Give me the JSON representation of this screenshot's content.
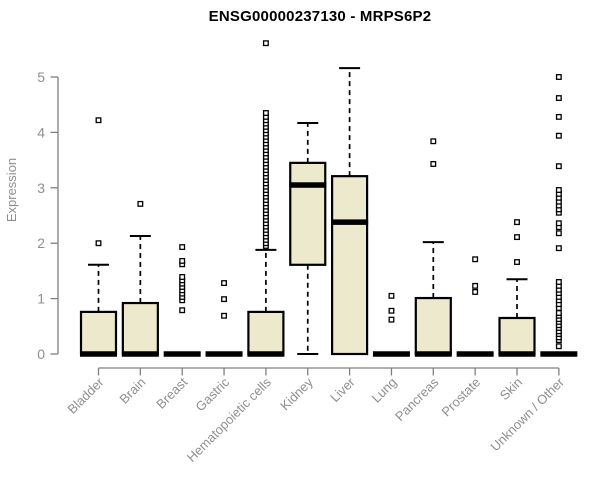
{
  "chart_data": {
    "type": "boxplot",
    "title": "ENSG00000237130 - MRPS6P2",
    "xlabel": "",
    "ylabel": "Expression",
    "ylim": [
      0,
      5
    ],
    "yticks": [
      0,
      1,
      2,
      3,
      4,
      5
    ],
    "grid": false,
    "legend": "none",
    "categories": [
      "Bladder",
      "Brain",
      "Breast",
      "Gastric",
      "Hematopoietic cells",
      "Kidney",
      "Liver",
      "Lung",
      "Pancreas",
      "Prostate",
      "Skin",
      "Unknown / Other"
    ],
    "series": [
      {
        "name": "Bladder",
        "whisker_low": 0,
        "q1": 0,
        "median": 0,
        "q3": 0.76,
        "whisker_high": 1.61,
        "outliers": [
          2.0,
          4.22
        ]
      },
      {
        "name": "Brain",
        "whisker_low": 0,
        "q1": 0,
        "median": 0,
        "q3": 0.92,
        "whisker_high": 2.13,
        "outliers": [
          2.71
        ]
      },
      {
        "name": "Breast",
        "whisker_low": 0,
        "q1": 0,
        "median": 0,
        "q3": 0,
        "whisker_high": 0,
        "outliers": [
          0.79,
          0.97,
          1.03,
          1.09,
          1.15,
          1.21,
          1.27,
          1.33,
          1.39,
          1.62,
          1.68,
          1.93
        ]
      },
      {
        "name": "Gastric",
        "whisker_low": 0,
        "q1": 0,
        "median": 0,
        "q3": 0,
        "whisker_high": 0,
        "outliers": [
          0.69,
          0.99,
          1.28
        ]
      },
      {
        "name": "Hematopoietic cells",
        "whisker_low": 0,
        "q1": 0,
        "median": 0,
        "q3": 0.76,
        "whisker_high": 1.88,
        "outliers": [
          1.95,
          2.0,
          2.06,
          2.12,
          2.18,
          2.24,
          2.3,
          2.36,
          2.42,
          2.48,
          2.54,
          2.6,
          2.66,
          2.72,
          2.78,
          2.84,
          2.9,
          2.96,
          3.02,
          3.08,
          3.14,
          3.2,
          3.26,
          3.32,
          3.38,
          3.44,
          3.5,
          3.56,
          3.62,
          3.68,
          3.74,
          3.8,
          3.86,
          3.92,
          3.98,
          4.04,
          4.1,
          4.16,
          4.22,
          4.28,
          4.35,
          5.61
        ]
      },
      {
        "name": "Kidney",
        "whisker_low": 0,
        "q1": 1.61,
        "median": 3.05,
        "q3": 3.45,
        "whisker_high": 4.17,
        "outliers": []
      },
      {
        "name": "Liver",
        "whisker_low": 0,
        "q1": 0,
        "median": 2.38,
        "q3": 3.21,
        "whisker_high": 5.16,
        "outliers": []
      },
      {
        "name": "Lung",
        "whisker_low": 0,
        "q1": 0,
        "median": 0,
        "q3": 0,
        "whisker_high": 0,
        "outliers": [
          0.62,
          0.78,
          1.05
        ]
      },
      {
        "name": "Pancreas",
        "whisker_low": 0,
        "q1": 0,
        "median": 0,
        "q3": 1.01,
        "whisker_high": 2.02,
        "outliers": [
          3.43,
          3.84
        ]
      },
      {
        "name": "Prostate",
        "whisker_low": 0,
        "q1": 0,
        "median": 0,
        "q3": 0,
        "whisker_high": 0,
        "outliers": [
          1.12,
          1.23,
          1.71
        ]
      },
      {
        "name": "Skin",
        "whisker_low": 0,
        "q1": 0,
        "median": 0,
        "q3": 0.65,
        "whisker_high": 1.35,
        "outliers": [
          1.66,
          2.11,
          2.38
        ]
      },
      {
        "name": "Unknown / Other",
        "whisker_low": 0,
        "q1": 0,
        "median": 0,
        "q3": 0,
        "whisker_high": 0,
        "outliers": [
          0.14,
          0.25,
          0.3,
          0.36,
          0.41,
          0.47,
          0.52,
          0.58,
          0.63,
          0.69,
          0.74,
          0.83,
          0.9,
          0.97,
          1.03,
          1.1,
          1.16,
          1.23,
          1.3,
          1.91,
          2.18,
          2.29,
          2.36,
          2.55,
          2.61,
          2.68,
          2.75,
          2.82,
          2.89,
          2.96,
          3.39,
          3.94,
          4.28,
          4.62,
          5.0
        ]
      }
    ],
    "colors": {
      "box_fill": "#EDE9CD",
      "box_stroke": "#000000",
      "median": "#000000",
      "whisker": "#000000",
      "outlier_stroke": "#000000",
      "outlier_fill": "#FFFFFF",
      "axis_line": "#808080",
      "axis_text": "#8F8F8F",
      "title_text": "#000000",
      "background": "#FFFFFF"
    }
  }
}
